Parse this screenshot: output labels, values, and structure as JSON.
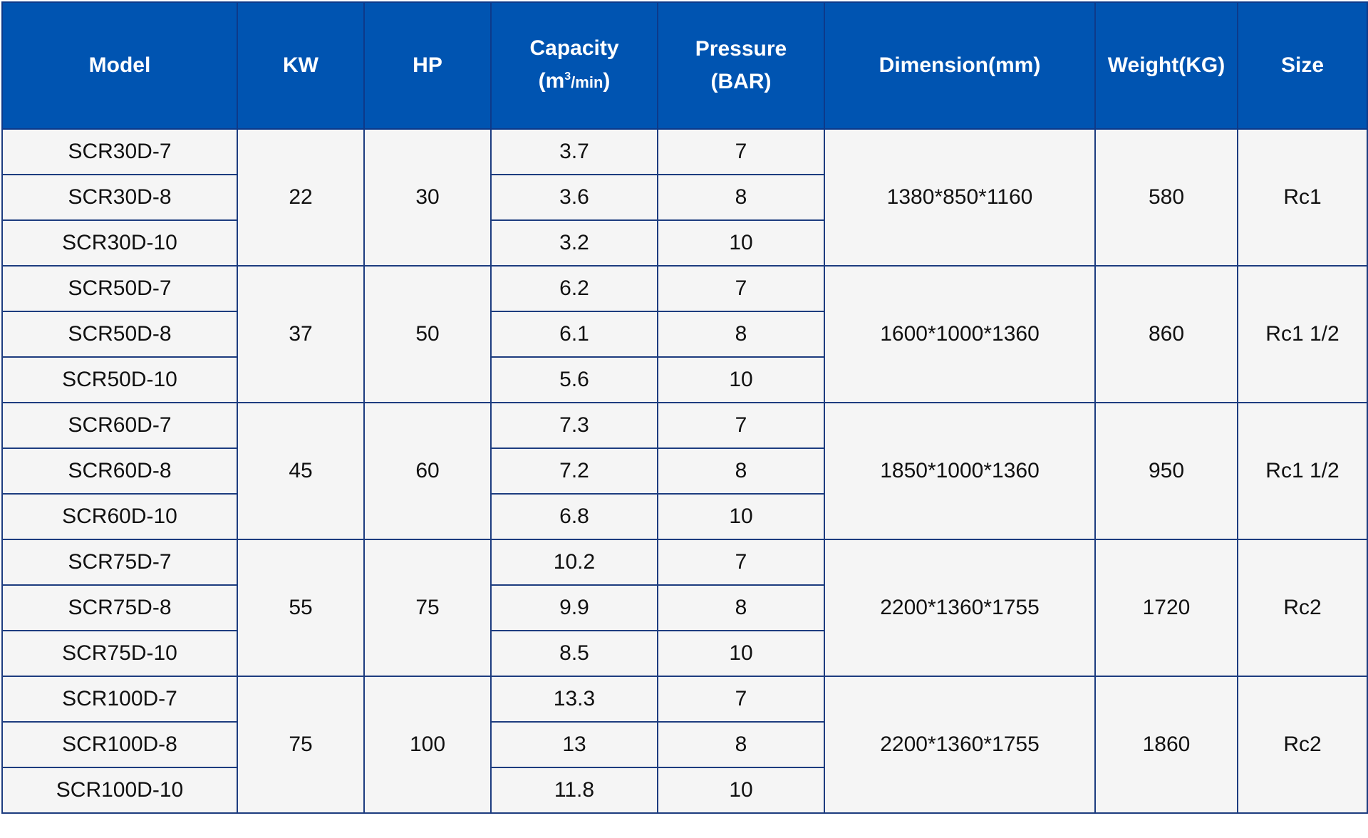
{
  "table": {
    "headers": {
      "model": "Model",
      "kw": "KW",
      "hp": "HP",
      "capacity_line1": "Capacity",
      "capacity_unit_open": "(m",
      "capacity_unit_sup": "3",
      "capacity_unit_min": "/min",
      "capacity_unit_close": ")",
      "pressure_line1": "Pressure",
      "pressure_line2": "(BAR)",
      "dimension": "Dimension(mm)",
      "weight": "Weight(KG)",
      "size": "Size"
    },
    "groups": [
      {
        "kw": "22",
        "hp": "30",
        "dimension": "1380*850*1160",
        "weight": "580",
        "size": "Rc1",
        "rows": [
          {
            "model": "SCR30D-7",
            "capacity": "3.7",
            "pressure": "7"
          },
          {
            "model": "SCR30D-8",
            "capacity": "3.6",
            "pressure": "8"
          },
          {
            "model": "SCR30D-10",
            "capacity": "3.2",
            "pressure": "10"
          }
        ]
      },
      {
        "kw": "37",
        "hp": "50",
        "dimension": "1600*1000*1360",
        "weight": "860",
        "size": "Rc1 1/2",
        "rows": [
          {
            "model": "SCR50D-7",
            "capacity": "6.2",
            "pressure": "7"
          },
          {
            "model": "SCR50D-8",
            "capacity": "6.1",
            "pressure": "8"
          },
          {
            "model": "SCR50D-10",
            "capacity": "5.6",
            "pressure": "10"
          }
        ]
      },
      {
        "kw": "45",
        "hp": "60",
        "dimension": "1850*1000*1360",
        "weight": "950",
        "size": "Rc1 1/2",
        "rows": [
          {
            "model": "SCR60D-7",
            "capacity": "7.3",
            "pressure": "7"
          },
          {
            "model": "SCR60D-8",
            "capacity": "7.2",
            "pressure": "8"
          },
          {
            "model": "SCR60D-10",
            "capacity": "6.8",
            "pressure": "10"
          }
        ]
      },
      {
        "kw": "55",
        "hp": "75",
        "dimension": "2200*1360*1755",
        "weight": "1720",
        "size": "Rc2",
        "rows": [
          {
            "model": "SCR75D-7",
            "capacity": "10.2",
            "pressure": "7"
          },
          {
            "model": "SCR75D-8",
            "capacity": "9.9",
            "pressure": "8"
          },
          {
            "model": "SCR75D-10",
            "capacity": "8.5",
            "pressure": "10"
          }
        ]
      },
      {
        "kw": "75",
        "hp": "100",
        "dimension": "2200*1360*1755",
        "weight": "1860",
        "size": "Rc2",
        "rows": [
          {
            "model": "SCR100D-7",
            "capacity": "13.3",
            "pressure": "7"
          },
          {
            "model": "SCR100D-8",
            "capacity": "13",
            "pressure": "8"
          },
          {
            "model": "SCR100D-10",
            "capacity": "11.8",
            "pressure": "10"
          }
        ]
      }
    ]
  }
}
